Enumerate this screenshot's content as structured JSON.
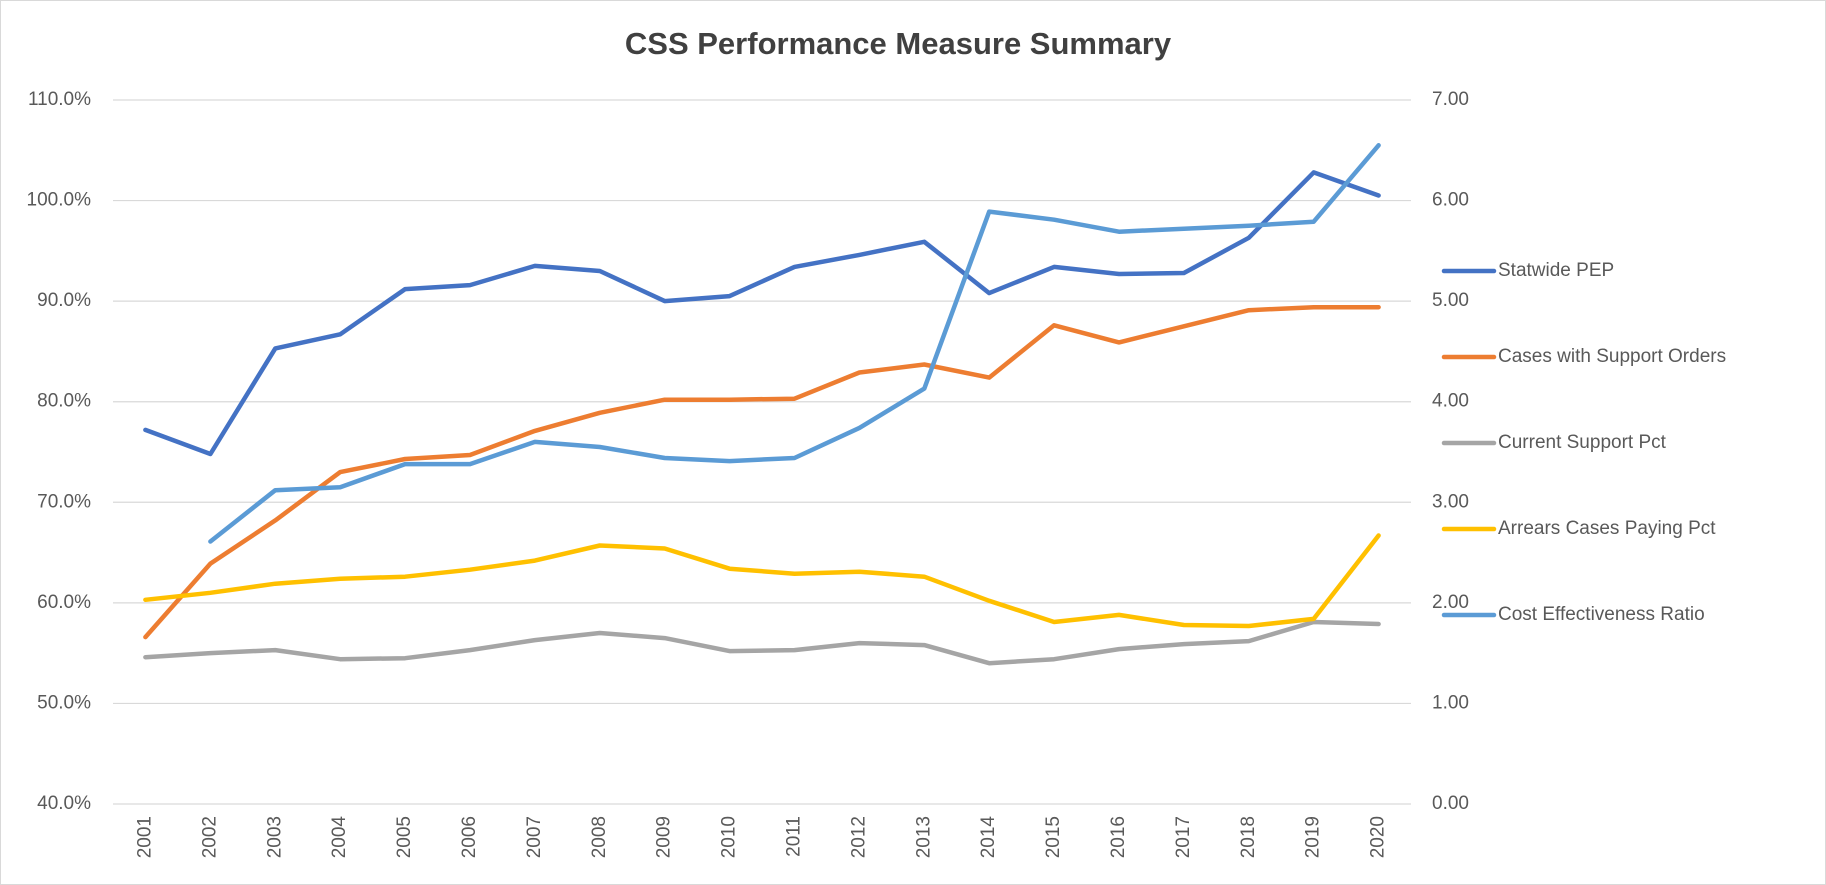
{
  "chart_data": {
    "type": "line",
    "title": "CSS Performance Measure Summary",
    "categories": [
      "2001",
      "2002",
      "2003",
      "2004",
      "2005",
      "2006",
      "2007",
      "2008",
      "2009",
      "2010",
      "2011",
      "2012",
      "2013",
      "2014",
      "2015",
      "2016",
      "2017",
      "2018",
      "2019",
      "2020"
    ],
    "series": [
      {
        "name": "Statwide PEP",
        "color": "#4472c4",
        "values": [
          77.2,
          74.8,
          85.3,
          86.7,
          91.2,
          91.6,
          93.5,
          93.0,
          90.0,
          90.5,
          93.4,
          94.6,
          95.9,
          90.8,
          93.4,
          92.7,
          92.8,
          96.3,
          102.8,
          100.5
        ]
      },
      {
        "name": "Cases with Support Orders",
        "color": "#ed7d31",
        "values": [
          56.6,
          63.9,
          68.2,
          73.0,
          74.3,
          74.7,
          77.1,
          78.9,
          80.2,
          80.2,
          80.3,
          82.9,
          83.7,
          82.4,
          87.6,
          85.9,
          87.5,
          89.1,
          89.4,
          89.4
        ]
      },
      {
        "name": "Current Support Pct",
        "color": "#a5a5a5",
        "values": [
          54.6,
          55.0,
          55.3,
          54.4,
          54.5,
          55.3,
          56.3,
          57.0,
          56.5,
          55.2,
          55.3,
          56.0,
          55.8,
          54.0,
          54.4,
          55.4,
          55.9,
          56.2,
          58.1,
          57.9
        ]
      },
      {
        "name": "Arrears Cases Paying Pct",
        "color": "#ffc000",
        "values": [
          60.3,
          61.0,
          61.9,
          62.4,
          62.6,
          63.3,
          64.2,
          65.7,
          65.4,
          63.4,
          62.9,
          63.1,
          62.6,
          60.2,
          58.1,
          58.8,
          57.8,
          57.7,
          58.4,
          66.7
        ]
      },
      {
        "name": "Cost Effectiveness Ratio",
        "color": "#5b9bd5",
        "axis": "y2",
        "values": [
          null,
          2.61,
          3.12,
          3.15,
          3.38,
          3.38,
          3.6,
          3.55,
          3.44,
          3.41,
          3.44,
          3.74,
          4.13,
          5.89,
          5.81,
          5.69,
          5.72,
          5.75,
          5.79,
          6.55
        ]
      }
    ],
    "ylim": [
      40,
      110
    ],
    "yticks": [
      {
        "value": 40,
        "label": "40.0%"
      },
      {
        "value": 50,
        "label": "50.0%"
      },
      {
        "value": 60,
        "label": "60.0%"
      },
      {
        "value": 70,
        "label": "70.0%"
      },
      {
        "value": 80,
        "label": "80.0%"
      },
      {
        "value": 90,
        "label": "90.0%"
      },
      {
        "value": 100,
        "label": "100.0%"
      },
      {
        "value": 110,
        "label": "110.0%"
      }
    ],
    "y2lim": [
      0,
      7
    ],
    "y2ticks": [
      {
        "value": 0,
        "label": "0.00"
      },
      {
        "value": 1,
        "label": "1.00"
      },
      {
        "value": 2,
        "label": "2.00"
      },
      {
        "value": 3,
        "label": "3.00"
      },
      {
        "value": 4,
        "label": "4.00"
      },
      {
        "value": 5,
        "label": "5.00"
      },
      {
        "value": 6,
        "label": "6.00"
      },
      {
        "value": 7,
        "label": "7.00"
      }
    ],
    "grid": true,
    "legend": "right"
  }
}
